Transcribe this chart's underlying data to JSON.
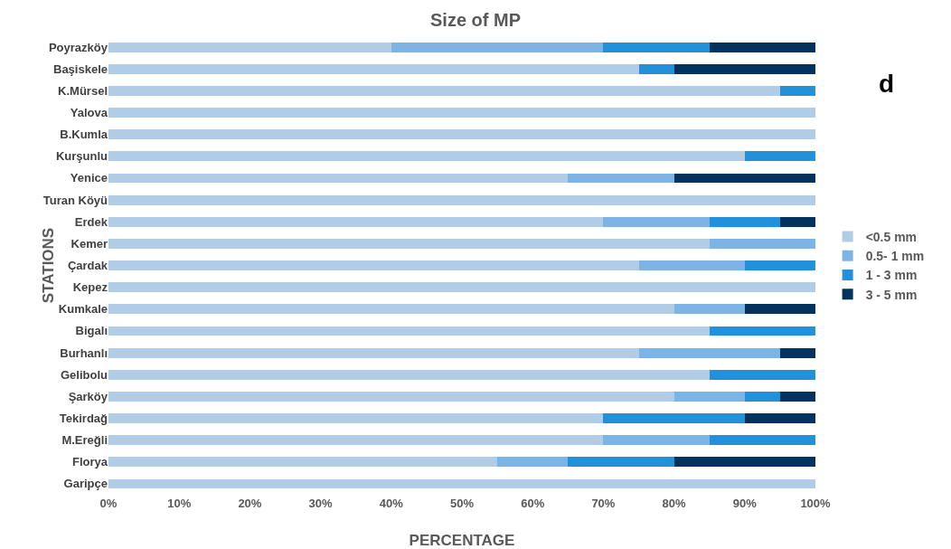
{
  "chart_data": {
    "type": "bar",
    "orientation": "horizontal",
    "stacked": true,
    "title": "Size of MP",
    "xlabel": "PERCENTAGE",
    "ylabel": "STATIONS",
    "categories": [
      "Poyrazköy",
      "Başiskele",
      "K.Mürsel",
      "Yalova",
      "B.Kumla",
      "Kurşunlu",
      "Yenice",
      "Turan Köyü",
      "Erdek",
      "Kemer",
      "Çardak",
      "Kepez",
      "Kumkale",
      "Bigalı",
      "Burhanlı",
      "Gelibolu",
      "Şarköy",
      "Tekirdağ",
      "M.Ereğli",
      "Florya",
      "Garipçe"
    ],
    "series": [
      {
        "name": "<0.5 mm",
        "color": "#b0cce6",
        "values": [
          40,
          75,
          95,
          100,
          100,
          90,
          65,
          100,
          70,
          85,
          75,
          100,
          80,
          85,
          75,
          85,
          80,
          70,
          70,
          55,
          100
        ]
      },
      {
        "name": "0.5- 1 mm",
        "color": "#7db4e6",
        "values": [
          30,
          0,
          0,
          0,
          0,
          0,
          15,
          0,
          15,
          15,
          15,
          0,
          10,
          0,
          20,
          0,
          10,
          0,
          15,
          10,
          0
        ]
      },
      {
        "name": "1 - 3 mm",
        "color": "#2390da",
        "values": [
          15,
          5,
          5,
          0,
          0,
          10,
          0,
          0,
          10,
          0,
          10,
          0,
          0,
          15,
          0,
          15,
          5,
          20,
          15,
          15,
          0
        ]
      },
      {
        "name": "3 - 5 mm",
        "color": "#02325e",
        "values": [
          15,
          20,
          0,
          0,
          0,
          0,
          20,
          0,
          5,
          0,
          0,
          0,
          10,
          0,
          5,
          0,
          5,
          10,
          0,
          20,
          0
        ]
      }
    ],
    "xlim": [
      0,
      100
    ],
    "xticks": [
      {
        "value": 0,
        "label": "0%"
      },
      {
        "value": 10,
        "label": "10%"
      },
      {
        "value": 20,
        "label": "20%"
      },
      {
        "value": 30,
        "label": "30%"
      },
      {
        "value": 40,
        "label": "40%"
      },
      {
        "value": 50,
        "label": "50%"
      },
      {
        "value": 60,
        "label": "60%"
      },
      {
        "value": 70,
        "label": "70%"
      },
      {
        "value": 80,
        "label": "80%"
      },
      {
        "value": 90,
        "label": "90%"
      },
      {
        "value": 100,
        "label": "100%"
      }
    ],
    "grid": false,
    "legend": "right",
    "annotations": [
      "d"
    ]
  }
}
